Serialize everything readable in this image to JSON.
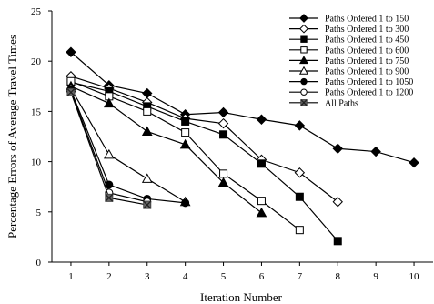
{
  "chart_data": {
    "type": "line",
    "title": "",
    "xlabel": "Iteration Number",
    "ylabel": "Percentage Errors of Average Travel Times",
    "xlim": [
      0.5,
      10.5
    ],
    "ylim": [
      0,
      25
    ],
    "x_ticks": [
      1,
      2,
      3,
      4,
      5,
      6,
      7,
      8,
      9,
      10
    ],
    "y_ticks": [
      0,
      5,
      10,
      15,
      20,
      25
    ],
    "grid": false,
    "legend_position": "top-right",
    "series": [
      {
        "name": "Paths Ordered 1 to 150",
        "marker": "diamond-filled",
        "x": [
          1,
          2,
          3,
          4,
          5,
          6,
          7,
          8,
          9,
          10
        ],
        "values": [
          20.9,
          17.6,
          16.8,
          14.7,
          14.9,
          14.2,
          13.6,
          11.3,
          11.0,
          9.9
        ]
      },
      {
        "name": "Paths Ordered 1 to 300",
        "marker": "diamond-open",
        "x": [
          1,
          2,
          3,
          4,
          5,
          6,
          7,
          8
        ],
        "values": [
          18.5,
          17.3,
          15.9,
          14.3,
          13.8,
          10.2,
          8.9,
          6.0
        ]
      },
      {
        "name": "Paths Ordered 1 to 450",
        "marker": "square-filled",
        "x": [
          1,
          2,
          3,
          4,
          5,
          6,
          7,
          8
        ],
        "values": [
          17.9,
          17.0,
          15.5,
          14.0,
          12.7,
          9.8,
          6.5,
          2.1
        ]
      },
      {
        "name": "Paths Ordered 1 to 600",
        "marker": "square-open",
        "x": [
          1,
          2,
          3,
          4,
          5,
          6,
          7
        ],
        "values": [
          18.0,
          16.5,
          15.0,
          12.9,
          8.8,
          6.1,
          3.2
        ]
      },
      {
        "name": "Paths Ordered 1 to 750",
        "marker": "triangle-filled",
        "x": [
          1,
          2,
          3,
          4,
          5,
          6
        ],
        "values": [
          17.5,
          15.8,
          13.0,
          11.7,
          7.9,
          4.9
        ]
      },
      {
        "name": "Paths Ordered 1 to 900",
        "marker": "triangle-open",
        "x": [
          1,
          2,
          3,
          4
        ],
        "values": [
          17.3,
          10.7,
          8.3,
          6.0
        ]
      },
      {
        "name": "Paths Ordered 1 to 1050",
        "marker": "circle-filled",
        "x": [
          1,
          2,
          3,
          4
        ],
        "values": [
          17.1,
          7.7,
          6.3,
          5.9
        ]
      },
      {
        "name": "Paths Ordered 1 to 1200",
        "marker": "circle-open",
        "x": [
          1,
          2,
          3
        ],
        "values": [
          17.0,
          6.9,
          6.0
        ]
      },
      {
        "name": "All Paths",
        "marker": "x-box",
        "x": [
          1,
          2,
          3
        ],
        "values": [
          16.9,
          6.4,
          5.7
        ]
      }
    ]
  }
}
